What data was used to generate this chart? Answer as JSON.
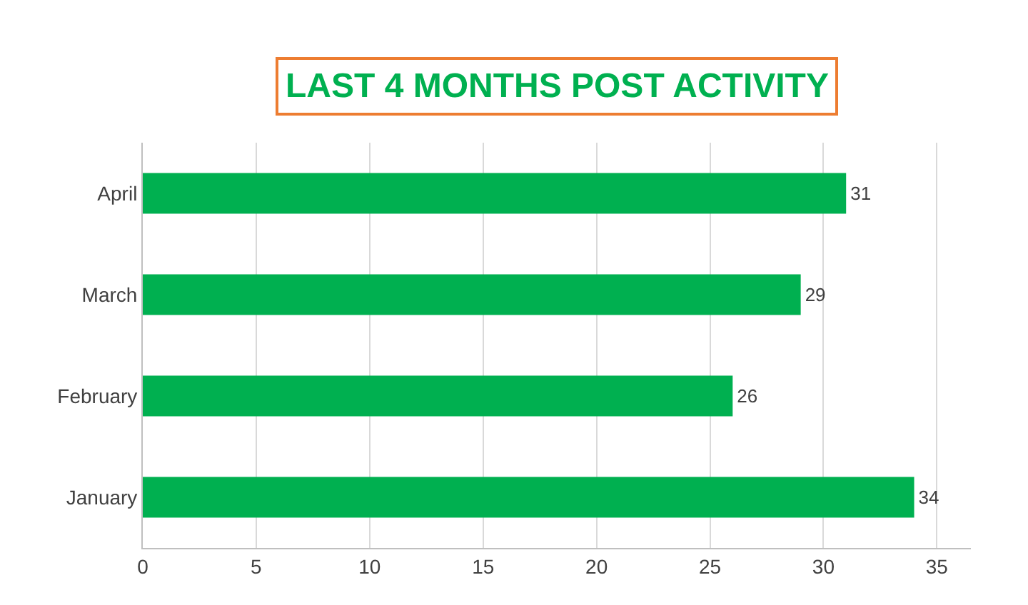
{
  "chart_data": {
    "type": "bar",
    "orientation": "horizontal",
    "title": "LAST 4 MONTHS POST ACTIVITY",
    "categories": [
      "April",
      "March",
      "February",
      "January"
    ],
    "values": [
      31,
      29,
      26,
      34
    ],
    "color": "#00b050",
    "xlim": [
      0,
      36.5
    ],
    "xticks": [
      0,
      5,
      10,
      15,
      20,
      25,
      30,
      35
    ],
    "grid": "x",
    "data_labels": true,
    "legend": false
  }
}
